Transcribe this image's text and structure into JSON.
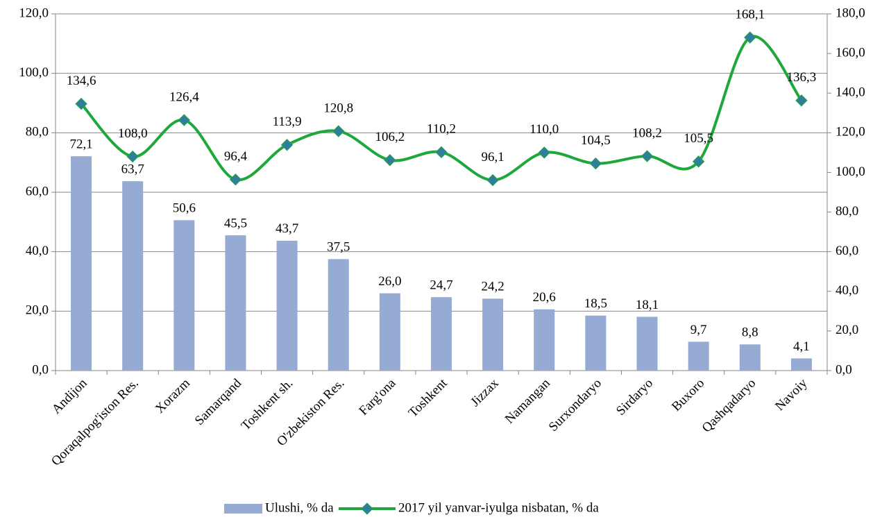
{
  "chart_data": {
    "type": "bar",
    "categories": [
      "Andijon",
      "Qoraqalpog'iston Res.",
      "Xorazm",
      "Samarqand",
      "Toshkent sh.",
      "O'zbekiston Res.",
      "Farg'ona",
      "Toshkent",
      "Jizzax",
      "Namangan",
      "Surxondaryo",
      "Sirdaryo",
      "Buxoro",
      "Qashqadaryo",
      "Navoiy"
    ],
    "series": [
      {
        "name": "Ulushi, % da",
        "color": "#95abd4",
        "values": [
          72.1,
          63.7,
          50.6,
          45.5,
          43.7,
          37.5,
          26.0,
          24.7,
          24.2,
          20.6,
          18.5,
          18.1,
          9.7,
          8.8,
          4.1
        ],
        "value_labels": [
          "72,1",
          "63,7",
          "50,6",
          "45,5",
          "43,7",
          "37,5",
          "26,0",
          "24,7",
          "24,2",
          "20,6",
          "18,5",
          "18,1",
          "9,7",
          "8,8",
          "4,1"
        ]
      },
      {
        "name": "2017 yil yanvar-iyulga nisbatan, % da",
        "type": "line",
        "axis": "y2",
        "color": "#1ea83c",
        "marker_color": "#2f7f9c",
        "values": [
          134.6,
          108.0,
          126.4,
          96.4,
          113.9,
          120.8,
          106.2,
          110.2,
          96.1,
          110.0,
          104.5,
          108.2,
          105.5,
          168.1,
          136.3
        ],
        "value_labels": [
          "134,6",
          "108,0",
          "126,4",
          "96,4",
          "113,9",
          "120,8",
          "106,2",
          "110,2",
          "96,1",
          "110,0",
          "104,5",
          "108,2",
          "105,5",
          "168,1",
          "136,3"
        ]
      }
    ],
    "ylim": [
      0,
      120
    ],
    "yticks": [
      {
        "value": 0,
        "label": "0,0"
      },
      {
        "value": 20,
        "label": "20,0"
      },
      {
        "value": 40,
        "label": "40,0"
      },
      {
        "value": 60,
        "label": "60,0"
      },
      {
        "value": 80,
        "label": "80,0"
      },
      {
        "value": 100,
        "label": "100,0"
      },
      {
        "value": 120,
        "label": "120,0"
      }
    ],
    "y2lim": [
      0,
      180
    ],
    "y2ticks": [
      {
        "value": 0,
        "label": "0,0"
      },
      {
        "value": 20,
        "label": "20,0"
      },
      {
        "value": 40,
        "label": "40,0"
      },
      {
        "value": 60,
        "label": "60,0"
      },
      {
        "value": 80,
        "label": "80,0"
      },
      {
        "value": 100,
        "label": "100,0"
      },
      {
        "value": 120,
        "label": "120,0"
      },
      {
        "value": 140,
        "label": "140,0"
      },
      {
        "value": 160,
        "label": "160,0"
      },
      {
        "value": 180,
        "label": "180,0"
      }
    ],
    "grid": true
  }
}
